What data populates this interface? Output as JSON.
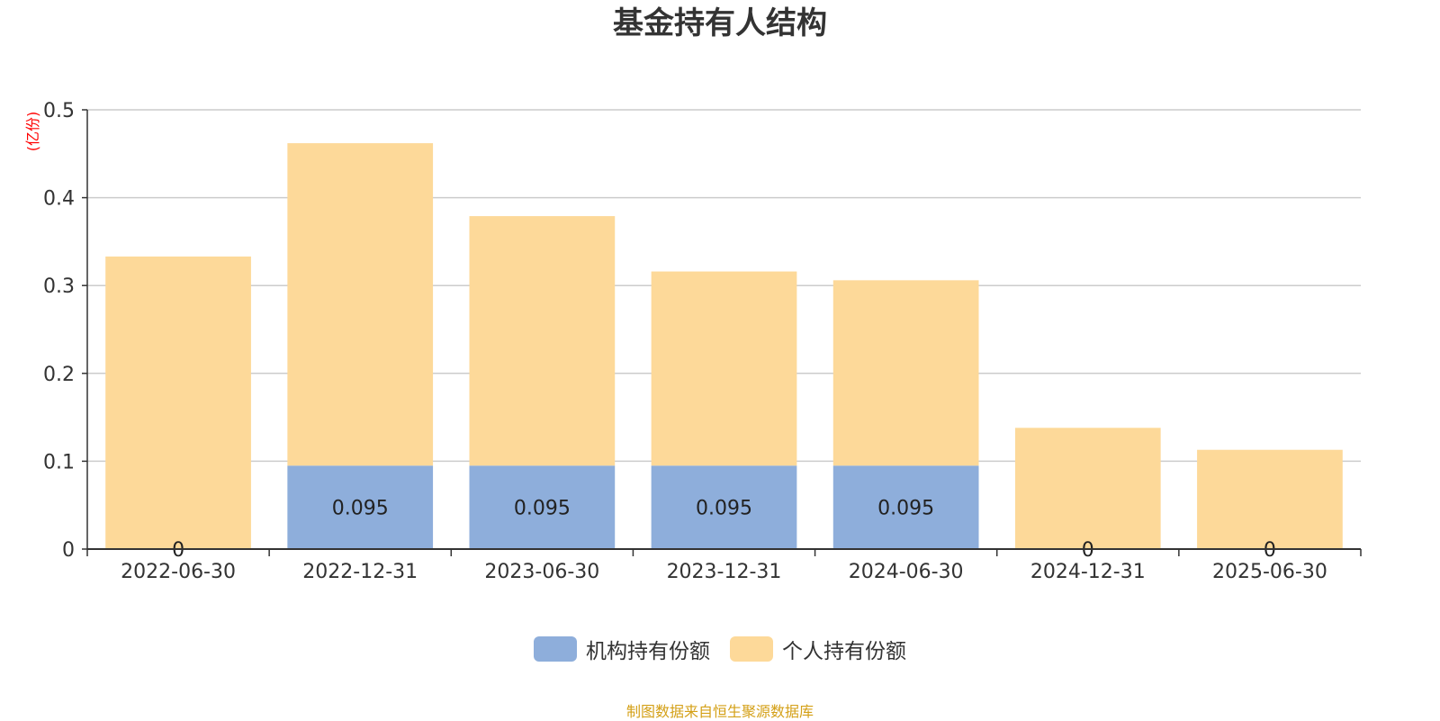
{
  "chart_data": {
    "type": "bar",
    "stacked": true,
    "title": "基金持有人结构",
    "ylabel": "(亿份)",
    "xlabel": "",
    "ylim": [
      0,
      0.5
    ],
    "yticks": [
      "0",
      "0.1",
      "0.2",
      "0.3",
      "0.4",
      "0.5"
    ],
    "grid": true,
    "legend_position": "bottom",
    "categories": [
      "2022-06-30",
      "2022-12-31",
      "2023-06-30",
      "2023-12-31",
      "2024-06-30",
      "2024-12-31",
      "2025-06-30"
    ],
    "series": [
      {
        "name": "机构持有份额",
        "color": "#8eaedb",
        "values": [
          0,
          0.095,
          0.095,
          0.095,
          0.095,
          0,
          0
        ],
        "labels": [
          "0",
          "0.095",
          "0.095",
          "0.095",
          "0.095",
          "0",
          "0"
        ]
      },
      {
        "name": "个人持有份额",
        "color": "#fdd999",
        "values": [
          0.333,
          0.367,
          0.284,
          0.221,
          0.211,
          0.138,
          0.113
        ]
      }
    ]
  },
  "footer": {
    "source": "制图数据来自恒生聚源数据库"
  },
  "colors": {
    "axis_label": "#ff0000",
    "grid": "#cccccc",
    "axis": "#333333",
    "source": "#d4a017"
  }
}
